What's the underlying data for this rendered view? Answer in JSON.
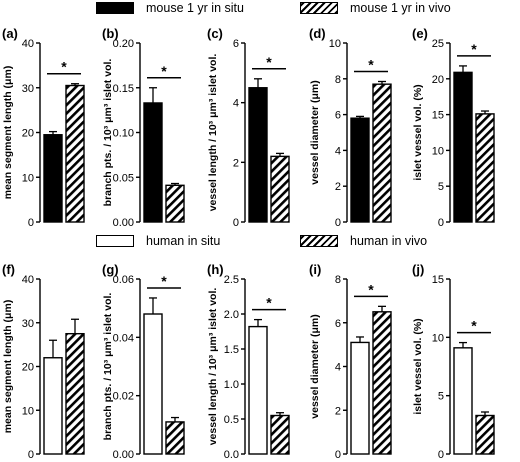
{
  "legends": [
    {
      "row": 0,
      "items": [
        {
          "label": "mouse 1 yr in situ",
          "style": "solid-black"
        },
        {
          "label": "mouse 1 yr in vivo",
          "style": "hatched"
        }
      ]
    },
    {
      "row": 1,
      "items": [
        {
          "label": "human in situ",
          "style": "open-white"
        },
        {
          "label": "human in vivo",
          "style": "hatched"
        }
      ]
    }
  ],
  "colors": {
    "bar_solid": "#000000",
    "bar_open": "#ffffff",
    "hatch": "#000000",
    "axis": "#000000"
  },
  "chart_data": [
    {
      "panel": "(a)",
      "type": "bar",
      "ylabel": "mean segment length (μm)",
      "ylim": [
        0,
        40
      ],
      "yticks": [
        "0",
        "10",
        "20",
        "30",
        "40"
      ],
      "yticks_values": [
        0,
        10,
        20,
        30,
        40
      ],
      "bars": [
        {
          "series": "mouse 1 yr in situ",
          "value": 19.5,
          "error": 0.7
        },
        {
          "series": "mouse 1 yr in vivo",
          "value": 30.5,
          "error": 0.4
        }
      ],
      "significance": "*"
    },
    {
      "panel": "(b)",
      "type": "bar",
      "ylabel": "branch pts. / 10³ μm³ islet vol.",
      "ylim": [
        0,
        0.2
      ],
      "yticks": [
        "0.00",
        "0.05",
        "0.10",
        "0.15",
        "0.20"
      ],
      "yticks_values": [
        0,
        0.05,
        0.1,
        0.15,
        0.2
      ],
      "bars": [
        {
          "series": "mouse 1 yr in situ",
          "value": 0.133,
          "error": 0.017
        },
        {
          "series": "mouse 1 yr in vivo",
          "value": 0.041,
          "error": 0.002
        }
      ],
      "significance": "*"
    },
    {
      "panel": "(c)",
      "type": "bar",
      "ylabel": "vessel length / 10³ μm³ islet vol.",
      "ylim": [
        0,
        6
      ],
      "yticks": [
        "0",
        "2",
        "4",
        "6"
      ],
      "yticks_values": [
        0,
        2,
        4,
        6
      ],
      "bars": [
        {
          "series": "mouse 1 yr in situ",
          "value": 4.5,
          "error": 0.3
        },
        {
          "series": "mouse 1 yr in vivo",
          "value": 2.2,
          "error": 0.1
        }
      ],
      "significance": "*"
    },
    {
      "panel": "(d)",
      "type": "bar",
      "ylabel": "vessel diameter (μm)",
      "ylim": [
        0,
        10
      ],
      "yticks": [
        "0",
        "2",
        "4",
        "6",
        "8",
        "10"
      ],
      "yticks_values": [
        0,
        2,
        4,
        6,
        8,
        10
      ],
      "bars": [
        {
          "series": "mouse 1 yr in situ",
          "value": 5.8,
          "error": 0.1
        },
        {
          "series": "mouse 1 yr in vivo",
          "value": 7.7,
          "error": 0.15
        }
      ],
      "significance": "*"
    },
    {
      "panel": "(e)",
      "type": "bar",
      "ylabel": "islet vessel vol. (%)",
      "ylim": [
        0,
        25
      ],
      "yticks": [
        "0",
        "5",
        "10",
        "15",
        "20",
        "25"
      ],
      "yticks_values": [
        0,
        5,
        10,
        15,
        20,
        25
      ],
      "bars": [
        {
          "series": "mouse 1 yr in situ",
          "value": 20.9,
          "error": 0.9
        },
        {
          "series": "mouse 1 yr in vivo",
          "value": 15.1,
          "error": 0.4
        }
      ],
      "significance": "*"
    },
    {
      "panel": "(f)",
      "type": "bar",
      "ylabel": "mean segment length (μm)",
      "ylim": [
        0,
        40
      ],
      "yticks": [
        "0",
        "10",
        "20",
        "30",
        "40"
      ],
      "yticks_values": [
        0,
        10,
        20,
        30,
        40
      ],
      "bars": [
        {
          "series": "human in situ",
          "value": 22.0,
          "error": 4.0
        },
        {
          "series": "human in vivo",
          "value": 27.5,
          "error": 3.3
        }
      ],
      "significance": ""
    },
    {
      "panel": "(g)",
      "type": "bar",
      "ylabel": "branch pts. / 10³ μm³ islet vol.",
      "ylim": [
        0,
        0.06
      ],
      "yticks": [
        "0.00",
        "0.02",
        "0.04",
        "0.06"
      ],
      "yticks_values": [
        0,
        0.02,
        0.04,
        0.06
      ],
      "bars": [
        {
          "series": "human in situ",
          "value": 0.048,
          "error": 0.0055
        },
        {
          "series": "human in vivo",
          "value": 0.011,
          "error": 0.0015
        }
      ],
      "significance": "*"
    },
    {
      "panel": "(h)",
      "type": "bar",
      "ylabel": "vessel length / 10³ μm³ islet vol.",
      "ylim": [
        0,
        2.5
      ],
      "yticks": [
        "0.0",
        "0.5",
        "1.0",
        "1.5",
        "2.0",
        "2.5"
      ],
      "yticks_values": [
        0,
        0.5,
        1.0,
        1.5,
        2.0,
        2.5
      ],
      "bars": [
        {
          "series": "human in situ",
          "value": 1.82,
          "error": 0.1
        },
        {
          "series": "human in vivo",
          "value": 0.55,
          "error": 0.04
        }
      ],
      "significance": "*"
    },
    {
      "panel": "(i)",
      "type": "bar",
      "ylabel": "vessel diameter (μm)",
      "ylim": [
        0,
        8
      ],
      "yticks": [
        "0",
        "2",
        "4",
        "6",
        "8"
      ],
      "yticks_values": [
        0,
        2,
        4,
        6,
        8
      ],
      "bars": [
        {
          "series": "human in situ",
          "value": 5.1,
          "error": 0.25
        },
        {
          "series": "human in vivo",
          "value": 6.5,
          "error": 0.25
        }
      ],
      "significance": "*"
    },
    {
      "panel": "(j)",
      "type": "bar",
      "ylabel": "islet vessel vol. (%)",
      "ylim": [
        0,
        15
      ],
      "yticks": [
        "0",
        "5",
        "10",
        "15"
      ],
      "yticks_values": [
        0,
        5,
        10,
        15
      ],
      "bars": [
        {
          "series": "human in situ",
          "value": 9.1,
          "error": 0.45
        },
        {
          "series": "human in vivo",
          "value": 3.3,
          "error": 0.3
        }
      ],
      "significance": "*"
    }
  ]
}
